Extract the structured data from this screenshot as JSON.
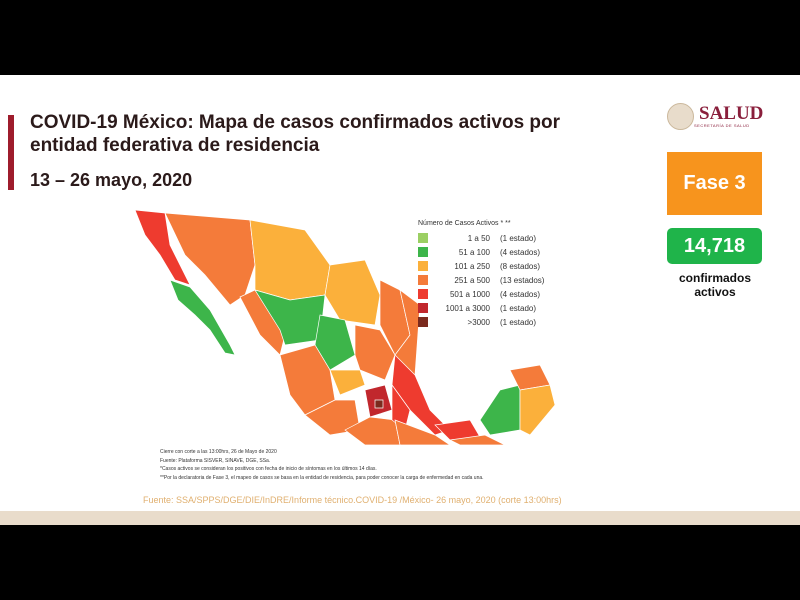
{
  "header": {
    "title": "COVID-19 México: Mapa de casos confirmados activos por entidad federativa de residencia",
    "date": "13 – 26 mayo, 2020"
  },
  "logo": {
    "name": "SALUD",
    "subtitle": "SECRETARÍA DE SALUD"
  },
  "phase": "Fase 3",
  "stats": {
    "count": "14,718",
    "label": "confirmados activos"
  },
  "legend": {
    "title": "Número de Casos Activos * **",
    "items": [
      {
        "range": "1 a 50",
        "count": "(1 estado)",
        "color": "#9bcf63"
      },
      {
        "range": "51 a 100",
        "count": "(4 estados)",
        "color": "#3db54a"
      },
      {
        "range": "101 a 250",
        "count": "(8 estados)",
        "color": "#fbb03b"
      },
      {
        "range": "251 a 500",
        "count": "(13 estados)",
        "color": "#f47b3a"
      },
      {
        "range": "501 a 1000",
        "count": "(4 estados)",
        "color": "#ee3b2f"
      },
      {
        "range": "1001 a 3000",
        "count": "(1 estado)",
        "color": "#c1272d"
      },
      {
        "range": ">3000",
        "count": "(1 estado)",
        "color": "#7b2a1e"
      }
    ]
  },
  "notes": [
    "Cierre con corte a las 13:00hrs, 26 de Mayo de 2020",
    "Fuente: Plataforma SISVER, SINAVE, DGE, SSa.",
    "*Casos activos se consideran los positivos con fecha de inicio de síntomas en los últimos 14 días.",
    "**Por la declaratoria de Fase 3, el mapeo de casos se basa en la entidad de residencia, para poder conocer la carga de enfermedad en cada una."
  ],
  "source": "Fuente: SSA/SPPS/DGE/DIE/InDRE/Informe técnico.COVID-19 /México- 26 mayo, 2020 (corte 13:00hrs)"
}
